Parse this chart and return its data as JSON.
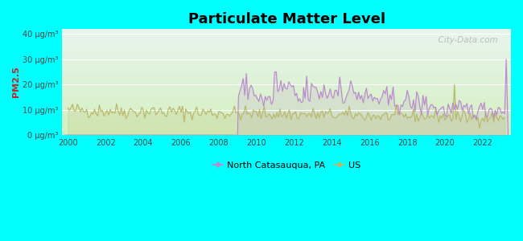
{
  "title": "Particulate Matter Level",
  "ylabel": "PM2.5",
  "background_color": "#00FFFF",
  "xlim": [
    1999.7,
    2023.5
  ],
  "ylim": [
    0,
    42
  ],
  "yticks": [
    0,
    10,
    20,
    30,
    40
  ],
  "ytick_labels": [
    "0 μg/m³",
    "10 μg/m³",
    "20 μg/m³",
    "30 μg/m³",
    "40 μg/m³"
  ],
  "xticks": [
    2000,
    2002,
    2004,
    2006,
    2008,
    2010,
    2012,
    2014,
    2016,
    2018,
    2020,
    2022
  ],
  "legend_nc_color": "#bb88cc",
  "legend_us_color": "#b8b86a",
  "watermark": "  City-Data.com",
  "nc_start": 2009.0,
  "us_start": 2000.0
}
